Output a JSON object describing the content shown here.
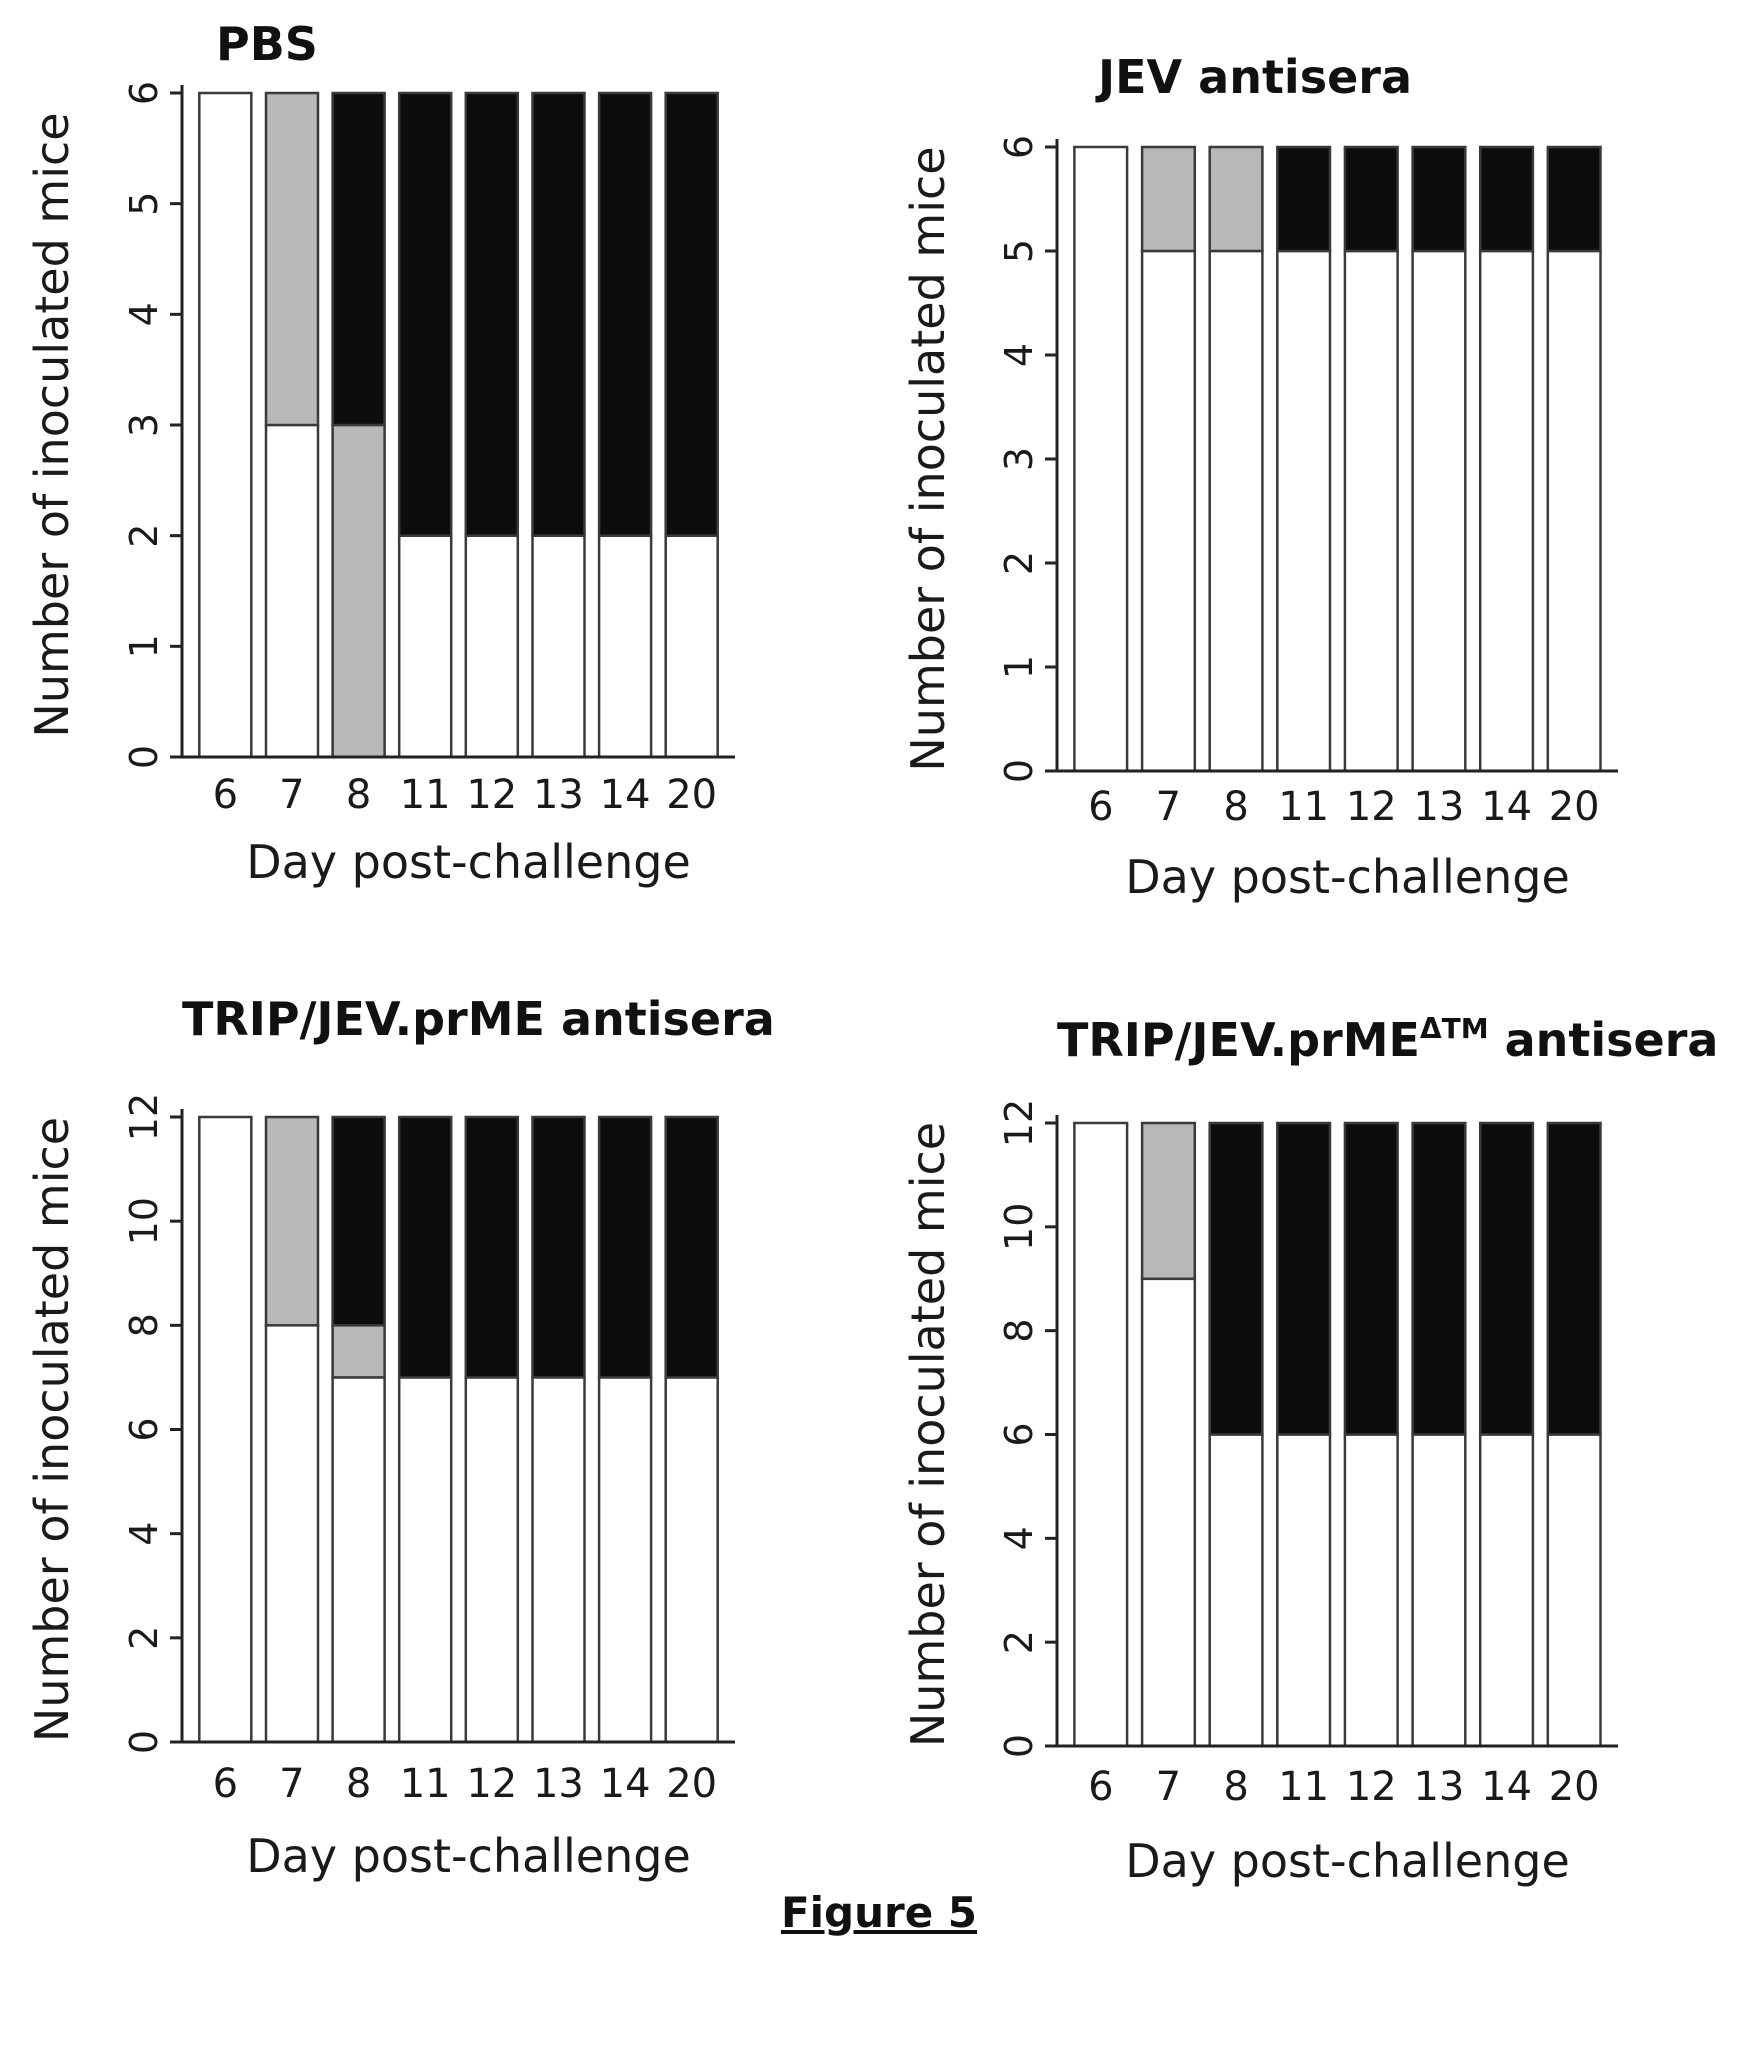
{
  "caption": "Figure 5",
  "colors": {
    "healthy": "#ffffff",
    "sick": "#b8b8b8",
    "dead": "#0d0d0d",
    "axis": "#222222"
  },
  "chart_data": [
    {
      "type": "bar",
      "stacked": true,
      "title": "PBS",
      "title_suffix": "",
      "title_superscript": "",
      "xlabel": "Day post-challenge",
      "ylabel": "Number of inoculated mice",
      "ylim": [
        0,
        6
      ],
      "yticks": [
        0,
        1,
        2,
        3,
        4,
        5,
        6
      ],
      "categories": [
        "6",
        "7",
        "8",
        "11",
        "12",
        "13",
        "14",
        "20"
      ],
      "series": [
        {
          "values": [
            6,
            3,
            0,
            2,
            2,
            2,
            2,
            2
          ]
        },
        {
          "values": [
            0,
            3,
            3,
            0,
            0,
            0,
            0,
            0
          ]
        },
        {
          "values": [
            0,
            0,
            3,
            4,
            4,
            4,
            4,
            4
          ]
        }
      ]
    },
    {
      "type": "bar",
      "stacked": true,
      "title": "JEV antisera",
      "title_suffix": "",
      "title_superscript": "",
      "xlabel": "Day post-challenge",
      "ylabel": "Number of inoculated mice",
      "ylim": [
        0,
        6
      ],
      "yticks": [
        0,
        1,
        2,
        3,
        4,
        5,
        6
      ],
      "categories": [
        "6",
        "7",
        "8",
        "11",
        "12",
        "13",
        "14",
        "20"
      ],
      "series": [
        {
          "values": [
            6,
            5,
            5,
            5,
            5,
            5,
            5,
            5
          ]
        },
        {
          "values": [
            0,
            1,
            1,
            0,
            0,
            0,
            0,
            0
          ]
        },
        {
          "values": [
            0,
            0,
            0,
            1,
            1,
            1,
            1,
            1
          ]
        }
      ]
    },
    {
      "type": "bar",
      "stacked": true,
      "title": "TRIP/JEV.prME antisera",
      "title_suffix": "",
      "title_superscript": "",
      "xlabel": "Day post-challenge",
      "ylabel": "Number of inoculated mice",
      "ylim": [
        0,
        12
      ],
      "yticks": [
        0,
        2,
        4,
        6,
        8,
        10,
        12
      ],
      "categories": [
        "6",
        "7",
        "8",
        "11",
        "12",
        "13",
        "14",
        "20"
      ],
      "series": [
        {
          "values": [
            12,
            8,
            7,
            7,
            7,
            7,
            7,
            7
          ]
        },
        {
          "values": [
            0,
            4,
            1,
            0,
            0,
            0,
            0,
            0
          ]
        },
        {
          "values": [
            0,
            0,
            4,
            5,
            5,
            5,
            5,
            5
          ]
        }
      ]
    },
    {
      "type": "bar",
      "stacked": true,
      "title": "TRIP/JEV.prME",
      "title_superscript": "ΔTM",
      "title_suffix": " antisera",
      "xlabel": "Day post-challenge",
      "ylabel": "Number of inoculated mice",
      "ylim": [
        0,
        12
      ],
      "yticks": [
        0,
        2,
        4,
        6,
        8,
        10,
        12
      ],
      "categories": [
        "6",
        "7",
        "8",
        "11",
        "12",
        "13",
        "14",
        "20"
      ],
      "series": [
        {
          "values": [
            12,
            9,
            6,
            6,
            6,
            6,
            6,
            6
          ]
        },
        {
          "values": [
            0,
            3,
            0,
            0,
            0,
            0,
            0,
            0
          ]
        },
        {
          "values": [
            0,
            0,
            6,
            6,
            6,
            6,
            6,
            6
          ]
        }
      ]
    }
  ]
}
